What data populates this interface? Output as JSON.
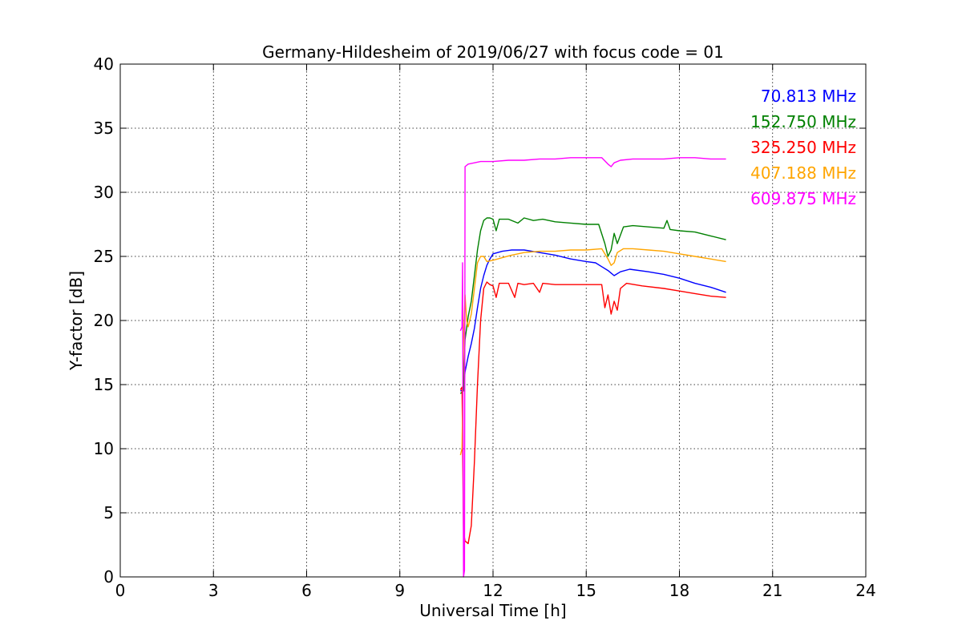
{
  "chart_data": {
    "type": "line",
    "title": "Germany-Hildesheim of 2019/06/27 with focus code = 01",
    "xlabel": "Universal Time [h]",
    "ylabel": "Y-factor [dB]",
    "xlim": [
      0,
      24
    ],
    "ylim": [
      0,
      40
    ],
    "xticks": [
      0,
      3,
      6,
      9,
      12,
      15,
      18,
      21,
      24
    ],
    "yticks": [
      0,
      5,
      10,
      15,
      20,
      25,
      30,
      35,
      40
    ],
    "grid": true,
    "legend_placement": "top-right",
    "series": [
      {
        "name": "70.813 MHz",
        "color": "#0000ff",
        "points": [
          [
            10.95,
            14.5
          ],
          [
            11.05,
            14.6
          ],
          [
            11.1,
            16.0
          ],
          [
            11.2,
            17.2
          ],
          [
            11.3,
            18.2
          ],
          [
            11.4,
            19.4
          ],
          [
            11.5,
            21.0
          ],
          [
            11.6,
            22.5
          ],
          [
            11.7,
            23.5
          ],
          [
            11.8,
            24.3
          ],
          [
            11.9,
            24.8
          ],
          [
            12.0,
            25.2
          ],
          [
            12.3,
            25.4
          ],
          [
            12.6,
            25.5
          ],
          [
            13.0,
            25.5
          ],
          [
            13.5,
            25.3
          ],
          [
            14.0,
            25.1
          ],
          [
            14.5,
            24.8
          ],
          [
            15.0,
            24.6
          ],
          [
            15.3,
            24.5
          ],
          [
            15.5,
            24.2
          ],
          [
            15.7,
            23.9
          ],
          [
            15.9,
            23.5
          ],
          [
            16.1,
            23.8
          ],
          [
            16.4,
            24.0
          ],
          [
            17.0,
            23.8
          ],
          [
            17.5,
            23.6
          ],
          [
            18.0,
            23.3
          ],
          [
            18.5,
            22.9
          ],
          [
            19.0,
            22.6
          ],
          [
            19.5,
            22.2
          ]
        ]
      },
      {
        "name": "152.750 MHz",
        "color": "#008000",
        "points": [
          [
            10.95,
            14.3
          ],
          [
            11.05,
            14.5
          ],
          [
            11.1,
            18.5
          ],
          [
            11.2,
            20.3
          ],
          [
            11.3,
            21.5
          ],
          [
            11.4,
            23.5
          ],
          [
            11.5,
            25.5
          ],
          [
            11.6,
            27.0
          ],
          [
            11.7,
            27.8
          ],
          [
            11.8,
            28.0
          ],
          [
            11.9,
            28.0
          ],
          [
            12.0,
            27.9
          ],
          [
            12.1,
            27.0
          ],
          [
            12.2,
            27.9
          ],
          [
            12.5,
            27.9
          ],
          [
            12.8,
            27.6
          ],
          [
            13.0,
            28.0
          ],
          [
            13.3,
            27.8
          ],
          [
            13.6,
            27.9
          ],
          [
            14.0,
            27.7
          ],
          [
            14.5,
            27.6
          ],
          [
            15.0,
            27.5
          ],
          [
            15.4,
            27.5
          ],
          [
            15.6,
            26.0
          ],
          [
            15.7,
            25.0
          ],
          [
            15.8,
            25.5
          ],
          [
            15.9,
            26.8
          ],
          [
            16.0,
            26.0
          ],
          [
            16.2,
            27.3
          ],
          [
            16.5,
            27.4
          ],
          [
            17.0,
            27.3
          ],
          [
            17.5,
            27.2
          ],
          [
            17.6,
            27.8
          ],
          [
            17.7,
            27.1
          ],
          [
            18.0,
            27.0
          ],
          [
            18.5,
            26.9
          ],
          [
            19.0,
            26.6
          ],
          [
            19.5,
            26.3
          ]
        ]
      },
      {
        "name": "325.250 MHz",
        "color": "#ff0000",
        "points": [
          [
            10.95,
            14.6
          ],
          [
            11.0,
            14.8
          ],
          [
            11.05,
            3.5
          ],
          [
            11.1,
            2.8
          ],
          [
            11.2,
            2.6
          ],
          [
            11.3,
            4.0
          ],
          [
            11.4,
            9.0
          ],
          [
            11.5,
            15.0
          ],
          [
            11.6,
            20.0
          ],
          [
            11.7,
            22.5
          ],
          [
            11.8,
            23.0
          ],
          [
            11.9,
            22.8
          ],
          [
            12.0,
            22.7
          ],
          [
            12.1,
            21.8
          ],
          [
            12.2,
            22.9
          ],
          [
            12.5,
            22.9
          ],
          [
            12.7,
            21.8
          ],
          [
            12.8,
            22.9
          ],
          [
            13.0,
            22.8
          ],
          [
            13.3,
            22.9
          ],
          [
            13.5,
            22.2
          ],
          [
            13.6,
            22.9
          ],
          [
            14.0,
            22.8
          ],
          [
            14.5,
            22.8
          ],
          [
            15.0,
            22.8
          ],
          [
            15.5,
            22.8
          ],
          [
            15.6,
            21.0
          ],
          [
            15.7,
            22.0
          ],
          [
            15.8,
            20.5
          ],
          [
            15.9,
            21.5
          ],
          [
            16.0,
            20.8
          ],
          [
            16.1,
            22.5
          ],
          [
            16.3,
            22.9
          ],
          [
            16.8,
            22.7
          ],
          [
            17.5,
            22.5
          ],
          [
            18.0,
            22.3
          ],
          [
            18.5,
            22.1
          ],
          [
            19.0,
            21.9
          ],
          [
            19.5,
            21.8
          ]
        ]
      },
      {
        "name": "407.188 MHz",
        "color": "#ffa500",
        "points": [
          [
            10.95,
            9.5
          ],
          [
            11.0,
            10.0
          ],
          [
            11.05,
            18.5
          ],
          [
            11.1,
            22.0
          ],
          [
            11.15,
            20.0
          ],
          [
            11.2,
            19.5
          ],
          [
            11.3,
            20.5
          ],
          [
            11.4,
            22.5
          ],
          [
            11.5,
            24.5
          ],
          [
            11.6,
            25.0
          ],
          [
            11.7,
            25.0
          ],
          [
            11.8,
            24.6
          ],
          [
            12.0,
            24.7
          ],
          [
            12.3,
            24.9
          ],
          [
            12.6,
            25.1
          ],
          [
            13.0,
            25.3
          ],
          [
            13.5,
            25.4
          ],
          [
            14.0,
            25.4
          ],
          [
            14.5,
            25.5
          ],
          [
            15.0,
            25.5
          ],
          [
            15.5,
            25.6
          ],
          [
            15.7,
            24.8
          ],
          [
            15.8,
            24.3
          ],
          [
            15.9,
            24.5
          ],
          [
            16.0,
            25.3
          ],
          [
            16.2,
            25.6
          ],
          [
            16.5,
            25.6
          ],
          [
            17.0,
            25.5
          ],
          [
            17.5,
            25.4
          ],
          [
            18.0,
            25.2
          ],
          [
            18.5,
            25.0
          ],
          [
            19.0,
            24.8
          ],
          [
            19.5,
            24.6
          ]
        ]
      },
      {
        "name": "609.875 MHz",
        "color": "#ff00ff",
        "points": [
          [
            10.95,
            19.2
          ],
          [
            11.0,
            19.5
          ],
          [
            11.02,
            24.5
          ],
          [
            11.05,
            0.0
          ],
          [
            11.08,
            0.5
          ],
          [
            11.1,
            32.0
          ],
          [
            11.2,
            32.2
          ],
          [
            11.4,
            32.3
          ],
          [
            11.6,
            32.4
          ],
          [
            12.0,
            32.4
          ],
          [
            12.5,
            32.5
          ],
          [
            13.0,
            32.5
          ],
          [
            13.5,
            32.6
          ],
          [
            14.0,
            32.6
          ],
          [
            14.5,
            32.7
          ],
          [
            15.0,
            32.7
          ],
          [
            15.5,
            32.7
          ],
          [
            15.7,
            32.2
          ],
          [
            15.8,
            32.0
          ],
          [
            15.9,
            32.3
          ],
          [
            16.1,
            32.5
          ],
          [
            16.5,
            32.6
          ],
          [
            17.0,
            32.6
          ],
          [
            17.5,
            32.6
          ],
          [
            18.0,
            32.7
          ],
          [
            18.5,
            32.7
          ],
          [
            19.0,
            32.6
          ],
          [
            19.5,
            32.6
          ]
        ]
      }
    ]
  }
}
